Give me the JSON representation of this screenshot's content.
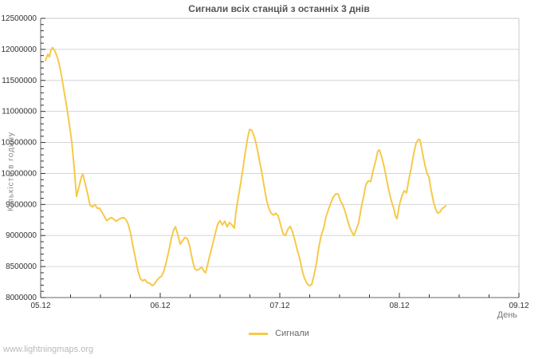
{
  "watermark": "www.lightningmaps.org",
  "colors": {
    "background": "#ffffff",
    "line": "#f6c94b",
    "grid": "#d6d6d6",
    "frame_light": "#c8c8c8",
    "axis_line": "#666666",
    "tick": "#333333",
    "title_text": "#555555",
    "tick_text": "#333333",
    "axis_title_text": "#888888",
    "legend_text": "#666666",
    "watermark_text": "#b9b9b9"
  },
  "chart_data": {
    "type": "line",
    "title": "Сигнали всіх станцій з останніх 3 днів",
    "xlabel": "День",
    "ylabel": "Кількість в годину",
    "x_tick_labels": [
      "05.12",
      "06.12",
      "07.12",
      "08.12",
      "09.12"
    ],
    "x_tick_days": [
      0,
      1,
      2,
      3,
      4
    ],
    "x_minor_step_days": 0.25,
    "xlim_days": [
      0,
      4
    ],
    "y_ticks": [
      8000000,
      8500000,
      9000000,
      9500000,
      10000000,
      10500000,
      11000000,
      11500000,
      12000000,
      12500000
    ],
    "y_minor_step": 100000,
    "ylim": [
      8000000,
      12500000
    ],
    "grid": "horizontal-only",
    "legend_position": "bottom-center",
    "series": [
      {
        "name": "Сигнали",
        "color": "#f6c94b",
        "points": [
          [
            0.04,
            11820000
          ],
          [
            0.06,
            11920000
          ],
          [
            0.073,
            11880000
          ],
          [
            0.087,
            11990000
          ],
          [
            0.1,
            12030000
          ],
          [
            0.12,
            11970000
          ],
          [
            0.14,
            11870000
          ],
          [
            0.16,
            11720000
          ],
          [
            0.18,
            11510000
          ],
          [
            0.2,
            11280000
          ],
          [
            0.22,
            11050000
          ],
          [
            0.24,
            10790000
          ],
          [
            0.26,
            10510000
          ],
          [
            0.28,
            10100000
          ],
          [
            0.3,
            9630000
          ],
          [
            0.32,
            9780000
          ],
          [
            0.34,
            9940000
          ],
          [
            0.353,
            9990000
          ],
          [
            0.373,
            9830000
          ],
          [
            0.393,
            9670000
          ],
          [
            0.413,
            9490000
          ],
          [
            0.433,
            9460000
          ],
          [
            0.453,
            9500000
          ],
          [
            0.473,
            9440000
          ],
          [
            0.493,
            9440000
          ],
          [
            0.513,
            9370000
          ],
          [
            0.533,
            9310000
          ],
          [
            0.553,
            9240000
          ],
          [
            0.573,
            9270000
          ],
          [
            0.593,
            9290000
          ],
          [
            0.613,
            9260000
          ],
          [
            0.633,
            9230000
          ],
          [
            0.653,
            9260000
          ],
          [
            0.673,
            9280000
          ],
          [
            0.693,
            9290000
          ],
          [
            0.713,
            9260000
          ],
          [
            0.733,
            9180000
          ],
          [
            0.753,
            9030000
          ],
          [
            0.773,
            8820000
          ],
          [
            0.793,
            8630000
          ],
          [
            0.813,
            8440000
          ],
          [
            0.833,
            8310000
          ],
          [
            0.853,
            8270000
          ],
          [
            0.873,
            8290000
          ],
          [
            0.893,
            8240000
          ],
          [
            0.913,
            8230000
          ],
          [
            0.933,
            8190000
          ],
          [
            0.953,
            8220000
          ],
          [
            0.973,
            8280000
          ],
          [
            0.993,
            8320000
          ],
          [
            1.013,
            8350000
          ],
          [
            1.033,
            8440000
          ],
          [
            1.053,
            8590000
          ],
          [
            1.073,
            8760000
          ],
          [
            1.093,
            8950000
          ],
          [
            1.113,
            9090000
          ],
          [
            1.127,
            9140000
          ],
          [
            1.147,
            9010000
          ],
          [
            1.167,
            8860000
          ],
          [
            1.187,
            8920000
          ],
          [
            1.207,
            8970000
          ],
          [
            1.227,
            8950000
          ],
          [
            1.247,
            8820000
          ],
          [
            1.267,
            8630000
          ],
          [
            1.287,
            8470000
          ],
          [
            1.307,
            8440000
          ],
          [
            1.327,
            8460000
          ],
          [
            1.347,
            8490000
          ],
          [
            1.367,
            8420000
          ],
          [
            1.38,
            8400000
          ],
          [
            1.4,
            8560000
          ],
          [
            1.42,
            8720000
          ],
          [
            1.44,
            8870000
          ],
          [
            1.46,
            9030000
          ],
          [
            1.48,
            9180000
          ],
          [
            1.5,
            9240000
          ],
          [
            1.52,
            9170000
          ],
          [
            1.54,
            9230000
          ],
          [
            1.56,
            9140000
          ],
          [
            1.58,
            9210000
          ],
          [
            1.6,
            9170000
          ],
          [
            1.62,
            9120000
          ],
          [
            1.633,
            9370000
          ],
          [
            1.653,
            9620000
          ],
          [
            1.673,
            9850000
          ],
          [
            1.693,
            10100000
          ],
          [
            1.713,
            10360000
          ],
          [
            1.733,
            10590000
          ],
          [
            1.747,
            10710000
          ],
          [
            1.767,
            10690000
          ],
          [
            1.787,
            10590000
          ],
          [
            1.807,
            10440000
          ],
          [
            1.827,
            10230000
          ],
          [
            1.847,
            10040000
          ],
          [
            1.867,
            9810000
          ],
          [
            1.887,
            9590000
          ],
          [
            1.907,
            9440000
          ],
          [
            1.927,
            9360000
          ],
          [
            1.947,
            9330000
          ],
          [
            1.967,
            9360000
          ],
          [
            1.987,
            9310000
          ],
          [
            2.007,
            9170000
          ],
          [
            2.027,
            9030000
          ],
          [
            2.047,
            9000000
          ],
          [
            2.067,
            9100000
          ],
          [
            2.087,
            9150000
          ],
          [
            2.107,
            9050000
          ],
          [
            2.127,
            8920000
          ],
          [
            2.147,
            8760000
          ],
          [
            2.167,
            8630000
          ],
          [
            2.187,
            8440000
          ],
          [
            2.207,
            8310000
          ],
          [
            2.227,
            8230000
          ],
          [
            2.247,
            8190000
          ],
          [
            2.267,
            8210000
          ],
          [
            2.287,
            8370000
          ],
          [
            2.307,
            8560000
          ],
          [
            2.327,
            8820000
          ],
          [
            2.347,
            9010000
          ],
          [
            2.367,
            9120000
          ],
          [
            2.387,
            9310000
          ],
          [
            2.407,
            9420000
          ],
          [
            2.427,
            9530000
          ],
          [
            2.447,
            9620000
          ],
          [
            2.467,
            9670000
          ],
          [
            2.487,
            9670000
          ],
          [
            2.507,
            9560000
          ],
          [
            2.527,
            9490000
          ],
          [
            2.547,
            9380000
          ],
          [
            2.567,
            9240000
          ],
          [
            2.587,
            9120000
          ],
          [
            2.607,
            9040000
          ],
          [
            2.62,
            9000000
          ],
          [
            2.64,
            9100000
          ],
          [
            2.66,
            9210000
          ],
          [
            2.68,
            9440000
          ],
          [
            2.7,
            9620000
          ],
          [
            2.72,
            9820000
          ],
          [
            2.74,
            9880000
          ],
          [
            2.76,
            9870000
          ],
          [
            2.78,
            10040000
          ],
          [
            2.8,
            10190000
          ],
          [
            2.82,
            10360000
          ],
          [
            2.833,
            10380000
          ],
          [
            2.853,
            10260000
          ],
          [
            2.873,
            10100000
          ],
          [
            2.893,
            9910000
          ],
          [
            2.913,
            9720000
          ],
          [
            2.933,
            9560000
          ],
          [
            2.953,
            9440000
          ],
          [
            2.967,
            9310000
          ],
          [
            2.98,
            9270000
          ],
          [
            3.0,
            9490000
          ],
          [
            3.02,
            9630000
          ],
          [
            3.04,
            9720000
          ],
          [
            3.06,
            9690000
          ],
          [
            3.08,
            9910000
          ],
          [
            3.1,
            10100000
          ],
          [
            3.12,
            10320000
          ],
          [
            3.14,
            10490000
          ],
          [
            3.16,
            10550000
          ],
          [
            3.173,
            10540000
          ],
          [
            3.193,
            10330000
          ],
          [
            3.213,
            10140000
          ],
          [
            3.233,
            9990000
          ],
          [
            3.247,
            9950000
          ],
          [
            3.267,
            9720000
          ],
          [
            3.287,
            9530000
          ],
          [
            3.307,
            9410000
          ],
          [
            3.32,
            9360000
          ],
          [
            3.34,
            9380000
          ],
          [
            3.36,
            9440000
          ],
          [
            3.373,
            9450000
          ],
          [
            3.387,
            9480000
          ]
        ]
      }
    ]
  }
}
